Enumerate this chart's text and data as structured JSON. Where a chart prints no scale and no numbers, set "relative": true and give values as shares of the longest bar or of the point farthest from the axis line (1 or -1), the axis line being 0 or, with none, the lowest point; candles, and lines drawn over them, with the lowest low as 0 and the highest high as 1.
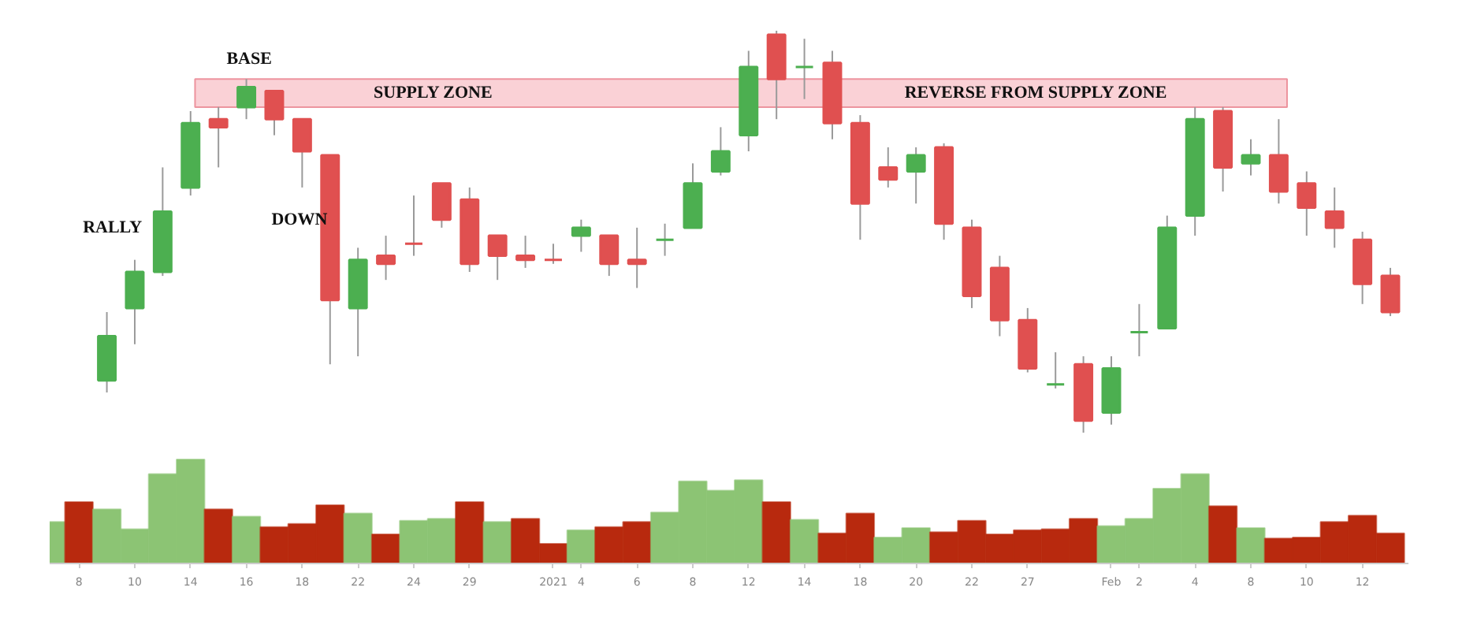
{
  "chart_data": [
    {
      "type": "candlestick",
      "relative": true,
      "tick_labels": false,
      "categories": [
        null,
        null,
        null,
        null,
        null,
        null,
        null,
        null,
        null,
        null,
        null,
        null,
        null,
        null,
        null,
        null,
        null,
        null,
        null,
        null,
        null,
        null,
        null,
        null,
        null,
        null,
        null,
        null,
        null,
        null,
        null,
        null,
        null,
        null,
        null,
        null,
        null,
        null,
        null,
        null,
        null,
        null,
        null,
        null,
        null,
        null,
        null
      ],
      "ohlc": [
        [
          0.13,
          0.3,
          0.1,
          0.24
        ],
        [
          0.31,
          0.43,
          0.22,
          0.4
        ],
        [
          0.4,
          0.66,
          0.39,
          0.55
        ],
        [
          0.61,
          0.8,
          0.59,
          0.77
        ],
        [
          0.78,
          0.81,
          0.66,
          0.76
        ],
        [
          0.81,
          0.88,
          0.78,
          0.86
        ],
        [
          0.85,
          0.85,
          0.74,
          0.78
        ],
        [
          0.78,
          0.78,
          0.61,
          0.7
        ],
        [
          0.69,
          0.69,
          0.17,
          0.33
        ],
        [
          0.31,
          0.46,
          0.19,
          0.43
        ],
        [
          0.44,
          0.49,
          0.38,
          0.42
        ],
        [
          0.47,
          0.59,
          0.44,
          0.47
        ],
        [
          0.62,
          0.62,
          0.51,
          0.53
        ],
        [
          0.58,
          0.61,
          0.4,
          0.42
        ],
        [
          0.49,
          0.49,
          0.38,
          0.44
        ],
        [
          0.44,
          0.49,
          0.41,
          0.43
        ],
        [
          0.43,
          0.47,
          0.42,
          0.43
        ],
        [
          0.49,
          0.53,
          0.45,
          0.51
        ],
        [
          0.49,
          0.49,
          0.39,
          0.42
        ],
        [
          0.43,
          0.51,
          0.36,
          0.42
        ],
        [
          0.48,
          0.52,
          0.44,
          0.48
        ],
        [
          0.51,
          0.67,
          0.51,
          0.62
        ],
        [
          0.65,
          0.76,
          0.64,
          0.7
        ],
        [
          0.74,
          0.95,
          0.7,
          0.91
        ],
        [
          0.99,
          1.0,
          0.78,
          0.88
        ],
        [
          0.91,
          0.98,
          0.83,
          0.91
        ],
        [
          0.92,
          0.95,
          0.73,
          0.77
        ],
        [
          0.77,
          0.79,
          0.48,
          0.57
        ],
        [
          0.66,
          0.71,
          0.61,
          0.63
        ],
        [
          0.65,
          0.71,
          0.57,
          0.69
        ],
        [
          0.71,
          0.72,
          0.48,
          0.52
        ],
        [
          0.51,
          0.53,
          0.31,
          0.34
        ],
        [
          0.41,
          0.44,
          0.24,
          0.28
        ],
        [
          0.28,
          0.31,
          0.15,
          0.16
        ],
        [
          0.12,
          0.2,
          0.11,
          0.12
        ],
        [
          0.17,
          0.19,
          0.0,
          0.03
        ],
        [
          0.05,
          0.19,
          0.02,
          0.16
        ],
        [
          0.25,
          0.32,
          0.19,
          0.25
        ],
        [
          0.26,
          0.54,
          0.26,
          0.51
        ],
        [
          0.54,
          0.81,
          0.49,
          0.78
        ],
        [
          0.8,
          0.81,
          0.6,
          0.66
        ],
        [
          0.67,
          0.73,
          0.64,
          0.69
        ],
        [
          0.69,
          0.78,
          0.57,
          0.6
        ],
        [
          0.62,
          0.65,
          0.49,
          0.56
        ],
        [
          0.55,
          0.61,
          0.46,
          0.51
        ],
        [
          0.48,
          0.5,
          0.32,
          0.37
        ],
        [
          0.39,
          0.41,
          0.29,
          0.3
        ]
      ],
      "colors": [
        "#4caf50",
        "#4caf50",
        "#4caf50",
        "#4caf50",
        "#e05050",
        "#4caf50",
        "#e05050",
        "#e05050",
        "#e05050",
        "#4caf50",
        "#e05050",
        "#e05050",
        "#e05050",
        "#e05050",
        "#e05050",
        "#e05050",
        "#e05050",
        "#4caf50",
        "#e05050",
        "#e05050",
        "#4caf50",
        "#4caf50",
        "#4caf50",
        "#4caf50",
        "#e05050",
        "#4caf50",
        "#e05050",
        "#e05050",
        "#e05050",
        "#4caf50",
        "#e05050",
        "#e05050",
        "#e05050",
        "#e05050",
        "#4caf50",
        "#e05050",
        "#4caf50",
        "#4caf50",
        "#4caf50",
        "#4caf50",
        "#e05050",
        "#4caf50",
        "#e05050",
        "#e05050",
        "#e05050",
        "#e05050",
        "#e05050"
      ],
      "bands": [
        {
          "axis": "y",
          "from": 0.81,
          "to": 0.88,
          "label": "SUPPLY ZONE",
          "color": "#f7b2ba"
        }
      ],
      "annotations": [
        "RALLY",
        "BASE",
        "DOWN",
        "REVERSE FROM SUPPLY ZONE"
      ]
    },
    {
      "type": "bar",
      "relative": true,
      "tick_labels": "x",
      "categories": [
        null,
        "8",
        null,
        "10",
        null,
        "14",
        null,
        "16",
        null,
        "18",
        null,
        "22",
        null,
        "24",
        null,
        "29",
        null,
        null,
        "2021",
        "4",
        null,
        "6",
        null,
        "8",
        null,
        "12",
        null,
        "14",
        null,
        "18",
        null,
        "20",
        null,
        "22",
        null,
        "27",
        null,
        null,
        "Feb",
        "2",
        null,
        "4",
        null,
        "8",
        null,
        "10",
        null,
        "12",
        null
      ],
      "values": [
        0.4,
        0.59,
        0.52,
        0.33,
        0.86,
        1.0,
        0.52,
        0.45,
        0.35,
        0.38,
        0.56,
        0.48,
        0.28,
        0.41,
        0.43,
        0.59,
        0.4,
        0.43,
        0.19,
        0.32,
        0.35,
        0.4,
        0.49,
        0.79,
        0.7,
        0.8,
        0.59,
        0.42,
        0.29,
        0.48,
        0.25,
        0.34,
        0.3,
        0.41,
        0.28,
        0.32,
        0.33,
        0.43,
        0.36,
        0.43,
        0.72,
        0.86,
        0.55,
        0.34,
        0.24,
        0.25,
        0.4,
        0.46,
        0.29
      ],
      "colors": [
        "#8cc474",
        "#b8290e",
        "#8cc474",
        "#8cc474",
        "#8cc474",
        "#8cc474",
        "#b8290e",
        "#8cc474",
        "#b8290e",
        "#b8290e",
        "#b8290e",
        "#8cc474",
        "#b8290e",
        "#8cc474",
        "#8cc474",
        "#b8290e",
        "#8cc474",
        "#b8290e",
        "#b8290e",
        "#8cc474",
        "#b8290e",
        "#b8290e",
        "#8cc474",
        "#8cc474",
        "#8cc474",
        "#8cc474",
        "#b8290e",
        "#8cc474",
        "#b8290e",
        "#b8290e",
        "#8cc474",
        "#8cc474",
        "#b8290e",
        "#b8290e",
        "#b8290e",
        "#b8290e",
        "#b8290e",
        "#b8290e",
        "#8cc474",
        "#8cc474",
        "#8cc474",
        "#8cc474",
        "#b8290e",
        "#8cc474",
        "#b8290e",
        "#b8290e",
        "#b8290e",
        "#b8290e",
        "#b8290e"
      ]
    }
  ]
}
